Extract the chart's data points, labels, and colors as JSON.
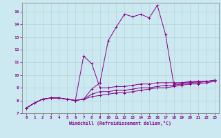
{
  "xlabel": "Windchill (Refroidissement éolien,°C)",
  "bg_color": "#cce8f0",
  "line_color": "#880088",
  "xlim": [
    -0.5,
    23.5
  ],
  "ylim": [
    7.0,
    15.7
  ],
  "xticks": [
    0,
    1,
    2,
    3,
    4,
    5,
    6,
    7,
    8,
    9,
    10,
    11,
    12,
    13,
    14,
    15,
    16,
    17,
    18,
    19,
    20,
    21,
    22,
    23
  ],
  "yticks": [
    7,
    8,
    9,
    10,
    11,
    12,
    13,
    14,
    15
  ],
  "series": [
    [
      7.4,
      7.8,
      8.1,
      8.2,
      8.2,
      8.1,
      8.0,
      8.1,
      8.3,
      8.4,
      8.5,
      8.6,
      8.6,
      8.7,
      8.8,
      8.9,
      9.0,
      9.0,
      9.1,
      9.2,
      9.3,
      9.3,
      9.4,
      9.5
    ],
    [
      7.4,
      7.8,
      8.1,
      8.2,
      8.2,
      8.1,
      8.0,
      8.1,
      8.5,
      8.7,
      8.7,
      8.8,
      8.8,
      8.9,
      9.0,
      9.0,
      9.1,
      9.2,
      9.2,
      9.3,
      9.4,
      9.4,
      9.5,
      9.6
    ],
    [
      7.4,
      7.8,
      8.1,
      8.2,
      8.2,
      8.1,
      8.0,
      11.5,
      10.9,
      9.0,
      9.0,
      9.1,
      9.1,
      9.2,
      9.3,
      9.3,
      9.4,
      9.4,
      9.4,
      9.4,
      9.5,
      9.5,
      9.5,
      9.6
    ],
    [
      7.4,
      7.8,
      8.1,
      8.2,
      8.2,
      8.1,
      8.0,
      8.1,
      8.9,
      9.4,
      12.7,
      13.8,
      14.8,
      14.6,
      14.8,
      14.5,
      15.5,
      13.2,
      9.3,
      9.4,
      9.4,
      9.5,
      9.5,
      9.6
    ]
  ]
}
